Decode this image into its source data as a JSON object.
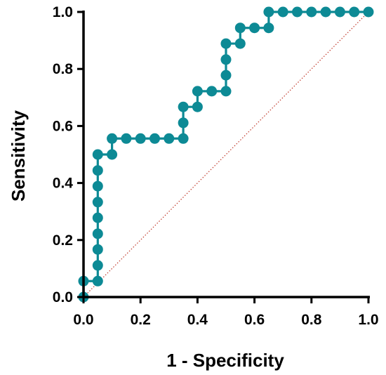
{
  "chart_data": {
    "type": "line",
    "xlabel": "1 - Specificity",
    "ylabel": "Sensitivity",
    "xlim": [
      0,
      1
    ],
    "ylim": [
      0,
      1
    ],
    "x_ticks": [
      "0.0",
      "0.2",
      "0.4",
      "0.6",
      "0.8",
      "1.0"
    ],
    "y_ticks": [
      "0.0",
      "0.2",
      "0.4",
      "0.6",
      "0.8",
      "1.0"
    ],
    "grid": false,
    "legend": "none",
    "series": [
      {
        "color": "#0d8a95",
        "marker": "circle",
        "step": true,
        "points": [
          [
            0.0,
            0.0
          ],
          [
            0.0,
            0.056
          ],
          [
            0.05,
            0.056
          ],
          [
            0.05,
            0.111
          ],
          [
            0.05,
            0.167
          ],
          [
            0.05,
            0.222
          ],
          [
            0.05,
            0.278
          ],
          [
            0.05,
            0.333
          ],
          [
            0.05,
            0.389
          ],
          [
            0.05,
            0.444
          ],
          [
            0.05,
            0.5
          ],
          [
            0.1,
            0.5
          ],
          [
            0.1,
            0.556
          ],
          [
            0.15,
            0.556
          ],
          [
            0.2,
            0.556
          ],
          [
            0.25,
            0.556
          ],
          [
            0.3,
            0.556
          ],
          [
            0.35,
            0.556
          ],
          [
            0.35,
            0.611
          ],
          [
            0.35,
            0.667
          ],
          [
            0.4,
            0.667
          ],
          [
            0.4,
            0.722
          ],
          [
            0.45,
            0.722
          ],
          [
            0.5,
            0.722
          ],
          [
            0.5,
            0.778
          ],
          [
            0.5,
            0.833
          ],
          [
            0.5,
            0.889
          ],
          [
            0.55,
            0.889
          ],
          [
            0.55,
            0.944
          ],
          [
            0.6,
            0.944
          ],
          [
            0.65,
            0.944
          ],
          [
            0.65,
            1.0
          ],
          [
            0.7,
            1.0
          ],
          [
            0.75,
            1.0
          ],
          [
            0.8,
            1.0
          ],
          [
            0.85,
            1.0
          ],
          [
            0.9,
            1.0
          ],
          [
            0.95,
            1.0
          ],
          [
            1.0,
            1.0
          ]
        ]
      }
    ],
    "reference_line": {
      "from": [
        0,
        0
      ],
      "to": [
        1,
        1
      ],
      "style": "dotted",
      "color": "#c0392b"
    }
  }
}
